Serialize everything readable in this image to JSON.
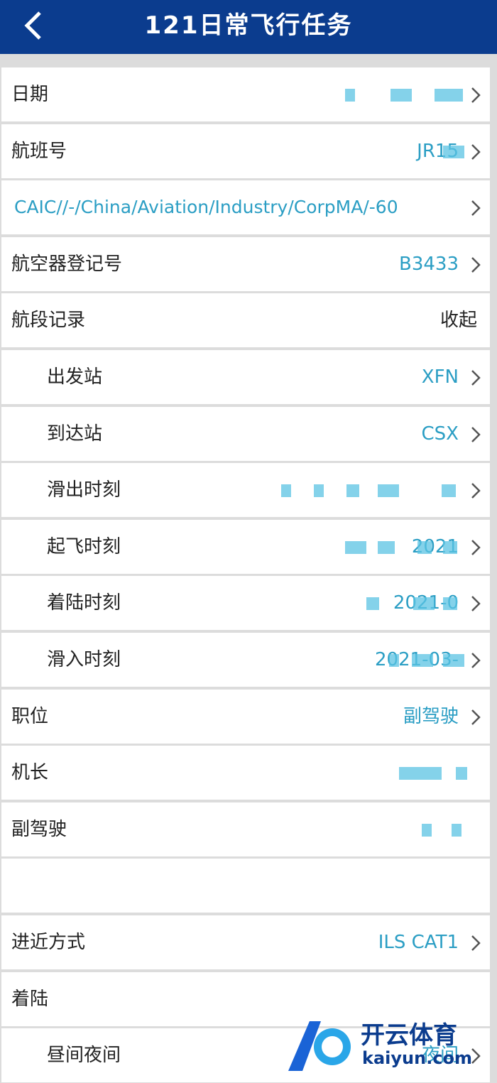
{
  "header": {
    "title": "121日常飞行任务"
  },
  "rows": [
    {
      "label": "日期"
    },
    {
      "label": "航班号",
      "value": "JR15"
    },
    {
      "label": "CAIC//-/China/Aviation/Industry/CorpMA/-60"
    },
    {
      "label": "航空器登记号",
      "value": "B3433"
    },
    {
      "label": "航段记录",
      "toggle": "收起",
      "children": [
        {
          "label": "出发站",
          "value": "XFN"
        },
        {
          "label": "到达站",
          "value": "CSX"
        },
        {
          "label": "滑出时刻"
        },
        {
          "label": "起飞时刻",
          "value": "2021"
        },
        {
          "label": "着陆时刻",
          "value": "2021-0"
        },
        {
          "label": "滑入时刻",
          "value": "2021-03-"
        }
      ]
    },
    {
      "label": "职位",
      "value": "副驾驶"
    },
    {
      "label": "机长"
    },
    {
      "label": "副驾驶"
    },
    {},
    {
      "label": "进近方式",
      "value": "ILS CAT1"
    },
    {
      "label": "着陆"
    },
    {
      "label": "昼间夜间",
      "value": "夜间",
      "sub": true
    }
  ],
  "watermark": {
    "brand": "开云体育",
    "site": "kaiyun.com"
  }
}
